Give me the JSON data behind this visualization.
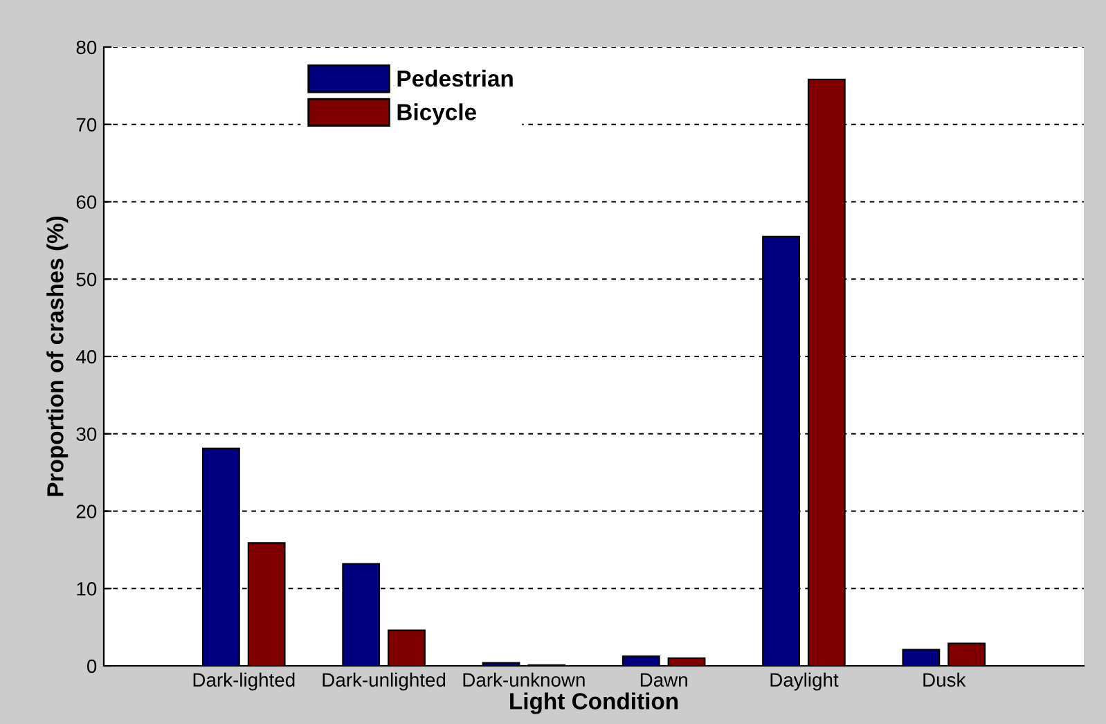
{
  "chart_data": {
    "type": "bar",
    "xlabel": "Light Condition",
    "ylabel": "Proportion of crashes (%)",
    "categories": [
      "Dark-lighted",
      "Dark-unlighted",
      "Dark-unknown",
      "Dawn",
      "Daylight",
      "Dusk"
    ],
    "series": [
      {
        "name": "Pedestrian",
        "color": "#000080",
        "values": [
          28.1,
          13.2,
          0.4,
          1.25,
          55.5,
          2.1
        ]
      },
      {
        "name": "Bicycle",
        "color": "#800000",
        "values": [
          15.9,
          4.6,
          0.1,
          1.0,
          75.8,
          2.9
        ]
      }
    ],
    "ylim": [
      0,
      80
    ],
    "yticks": [
      0,
      10,
      20,
      30,
      40,
      50,
      60,
      70,
      80
    ],
    "grid": "y",
    "legend": "top left"
  }
}
